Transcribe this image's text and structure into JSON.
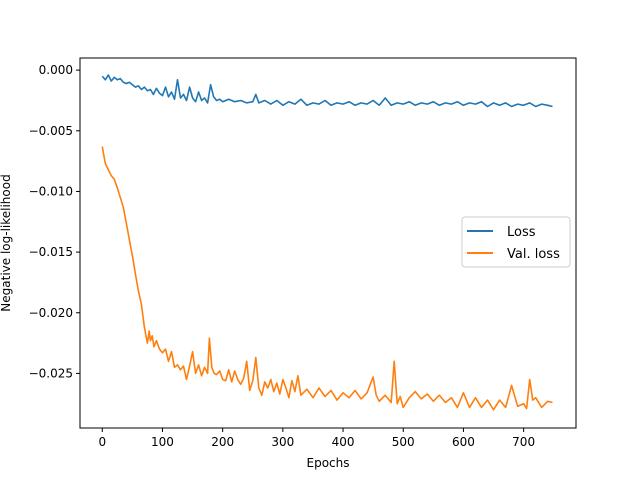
{
  "chart_data": {
    "type": "line",
    "title": "",
    "xlabel": "Epochs",
    "ylabel": "Negative log-likelihood",
    "xlim": [
      -37,
      787
    ],
    "ylim": [
      -0.0295,
      0.001
    ],
    "xticks": [
      0,
      100,
      200,
      300,
      400,
      500,
      600,
      700
    ],
    "xtick_labels": [
      "0",
      "100",
      "200",
      "300",
      "400",
      "500",
      "600",
      "700"
    ],
    "yticks": [
      0.0,
      -0.005,
      -0.01,
      -0.015,
      -0.02,
      -0.025
    ],
    "ytick_labels": [
      "0.000",
      "−0.005",
      "−0.010",
      "−0.015",
      "−0.020",
      "−0.025"
    ],
    "grid": false,
    "legend_position": "center-right",
    "series": [
      {
        "name": "Loss",
        "color": "#1f77b4",
        "x": [
          0,
          5,
          10,
          15,
          20,
          25,
          30,
          35,
          40,
          45,
          50,
          55,
          60,
          65,
          70,
          75,
          80,
          85,
          90,
          95,
          100,
          105,
          110,
          115,
          120,
          125,
          130,
          135,
          140,
          145,
          150,
          155,
          160,
          165,
          170,
          175,
          180,
          185,
          190,
          195,
          200,
          210,
          220,
          230,
          240,
          250,
          255,
          260,
          270,
          280,
          290,
          300,
          310,
          320,
          330,
          340,
          350,
          360,
          370,
          380,
          390,
          400,
          410,
          420,
          430,
          440,
          450,
          460,
          470,
          480,
          490,
          500,
          510,
          520,
          530,
          540,
          550,
          560,
          570,
          580,
          590,
          600,
          610,
          620,
          630,
          640,
          650,
          660,
          670,
          680,
          690,
          700,
          710,
          720,
          730,
          740,
          748
        ],
        "y": [
          -0.0005,
          -0.0008,
          -0.0004,
          -0.0009,
          -0.0006,
          -0.0008,
          -0.0007,
          -0.001,
          -0.0011,
          -0.001,
          -0.0012,
          -0.0014,
          -0.0013,
          -0.0016,
          -0.0014,
          -0.0017,
          -0.0016,
          -0.002,
          -0.0015,
          -0.0019,
          -0.0021,
          -0.0014,
          -0.0022,
          -0.0018,
          -0.0024,
          -0.0008,
          -0.0023,
          -0.002,
          -0.0025,
          -0.0014,
          -0.0023,
          -0.0026,
          -0.0018,
          -0.0025,
          -0.0023,
          -0.0027,
          -0.0012,
          -0.0022,
          -0.0025,
          -0.0024,
          -0.0026,
          -0.0024,
          -0.0026,
          -0.0025,
          -0.0027,
          -0.0026,
          -0.002,
          -0.0027,
          -0.0025,
          -0.0028,
          -0.0025,
          -0.0029,
          -0.0026,
          -0.0028,
          -0.0024,
          -0.0029,
          -0.0027,
          -0.0028,
          -0.0025,
          -0.0029,
          -0.0027,
          -0.0028,
          -0.0026,
          -0.0029,
          -0.0027,
          -0.0028,
          -0.0025,
          -0.0029,
          -0.0023,
          -0.0029,
          -0.0027,
          -0.0028,
          -0.0026,
          -0.0029,
          -0.0027,
          -0.0028,
          -0.0026,
          -0.0029,
          -0.0027,
          -0.0028,
          -0.0026,
          -0.0029,
          -0.0027,
          -0.0028,
          -0.0026,
          -0.003,
          -0.0027,
          -0.0029,
          -0.0027,
          -0.003,
          -0.0028,
          -0.0029,
          -0.0027,
          -0.003,
          -0.0028,
          -0.0029,
          -0.003
        ]
      },
      {
        "name": "Val. loss",
        "color": "#ff7f0e",
        "x": [
          0,
          5,
          10,
          15,
          20,
          25,
          30,
          35,
          40,
          45,
          50,
          55,
          60,
          65,
          70,
          75,
          78,
          80,
          83,
          86,
          90,
          95,
          100,
          105,
          110,
          115,
          120,
          125,
          130,
          135,
          140,
          145,
          150,
          155,
          160,
          165,
          170,
          175,
          178,
          182,
          186,
          190,
          195,
          200,
          205,
          210,
          215,
          220,
          225,
          230,
          235,
          240,
          245,
          250,
          255,
          260,
          265,
          270,
          275,
          280,
          285,
          290,
          295,
          300,
          305,
          310,
          315,
          320,
          325,
          330,
          340,
          350,
          360,
          370,
          380,
          390,
          400,
          410,
          420,
          430,
          440,
          450,
          455,
          460,
          470,
          480,
          485,
          490,
          495,
          500,
          510,
          520,
          530,
          540,
          550,
          560,
          570,
          580,
          590,
          600,
          610,
          620,
          630,
          640,
          650,
          660,
          670,
          680,
          690,
          700,
          705,
          710,
          715,
          720,
          730,
          740,
          748
        ],
        "y": [
          -0.0063,
          -0.0077,
          -0.0082,
          -0.0087,
          -0.009,
          -0.0097,
          -0.0105,
          -0.0113,
          -0.0126,
          -0.014,
          -0.0153,
          -0.0168,
          -0.0182,
          -0.0193,
          -0.0212,
          -0.0225,
          -0.0215,
          -0.0223,
          -0.0219,
          -0.0228,
          -0.0223,
          -0.023,
          -0.0233,
          -0.023,
          -0.024,
          -0.0232,
          -0.0245,
          -0.0243,
          -0.0247,
          -0.0244,
          -0.0255,
          -0.0244,
          -0.0232,
          -0.025,
          -0.0243,
          -0.0252,
          -0.0245,
          -0.025,
          -0.0221,
          -0.0245,
          -0.025,
          -0.0251,
          -0.0248,
          -0.0255,
          -0.0256,
          -0.0247,
          -0.0257,
          -0.0248,
          -0.0255,
          -0.0259,
          -0.0254,
          -0.024,
          -0.0264,
          -0.0256,
          -0.0237,
          -0.0262,
          -0.0268,
          -0.0257,
          -0.0262,
          -0.0255,
          -0.0265,
          -0.0258,
          -0.0267,
          -0.0255,
          -0.0262,
          -0.027,
          -0.0256,
          -0.0265,
          -0.0252,
          -0.0268,
          -0.0263,
          -0.027,
          -0.0262,
          -0.0269,
          -0.0264,
          -0.0272,
          -0.0266,
          -0.027,
          -0.0264,
          -0.0271,
          -0.0266,
          -0.0253,
          -0.0268,
          -0.0273,
          -0.0268,
          -0.0274,
          -0.024,
          -0.0275,
          -0.0269,
          -0.0278,
          -0.027,
          -0.0265,
          -0.0271,
          -0.0267,
          -0.0273,
          -0.0268,
          -0.0274,
          -0.027,
          -0.0278,
          -0.0266,
          -0.0278,
          -0.027,
          -0.0278,
          -0.0272,
          -0.028,
          -0.0272,
          -0.0278,
          -0.026,
          -0.0277,
          -0.0275,
          -0.0279,
          -0.0255,
          -0.0272,
          -0.027,
          -0.0278,
          -0.0273,
          -0.0274
        ]
      }
    ]
  }
}
